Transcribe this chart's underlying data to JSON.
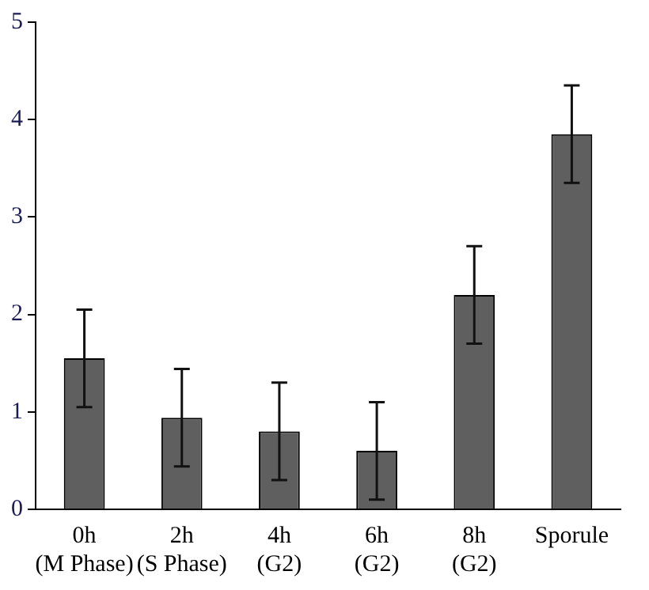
{
  "chart_data": {
    "type": "bar",
    "categories": [
      "0h (M Phase)",
      "2h (S Phase)",
      "4h (G2)",
      "6h (G2)",
      "8h (G2)",
      "Sporule"
    ],
    "values": [
      1.55,
      0.94,
      0.8,
      0.6,
      2.2,
      3.85
    ],
    "errors": [
      0.5,
      0.5,
      0.5,
      0.5,
      0.5,
      0.5
    ],
    "color": "#5f5f5f",
    "ylim": [
      0,
      5
    ],
    "yticks": [
      0,
      1,
      2,
      3,
      4,
      5
    ],
    "grid": false,
    "legend": false
  }
}
